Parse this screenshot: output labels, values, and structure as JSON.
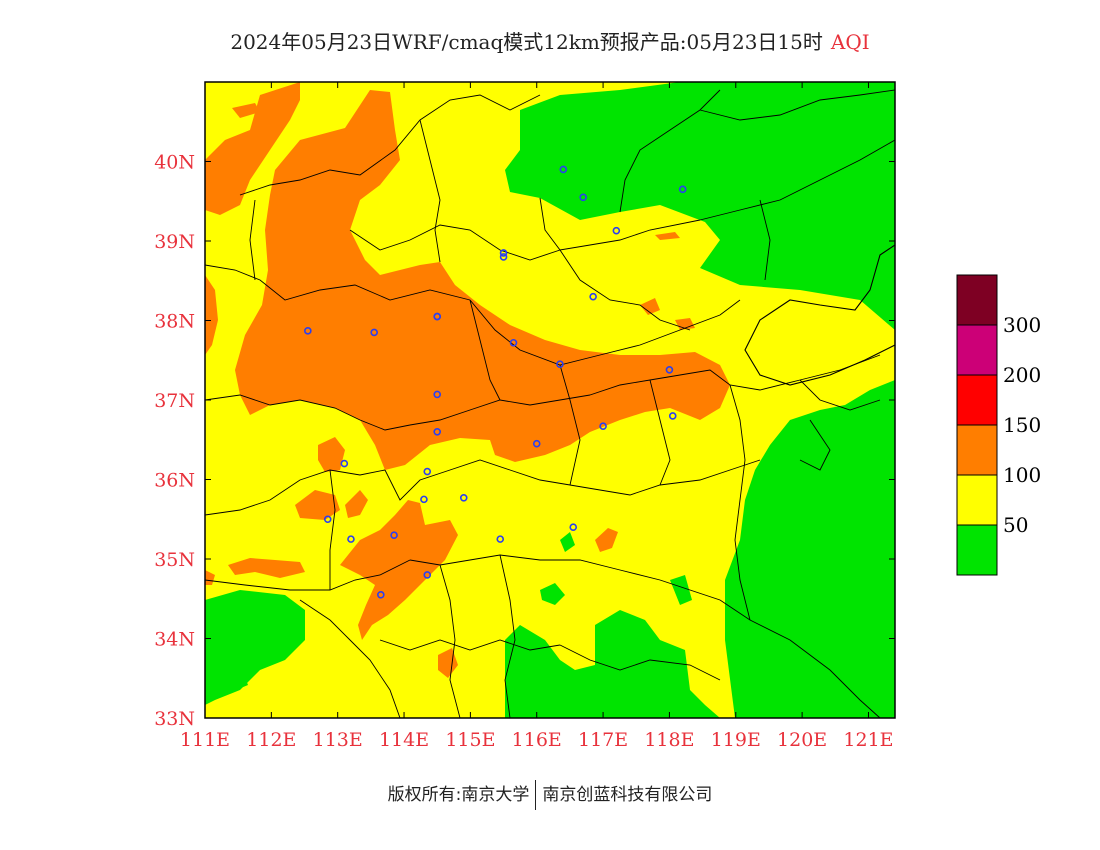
{
  "title": {
    "text": "2024年05月23日WRF/cmaq模式12km预报产品:05月23日15时",
    "tag": "AQI"
  },
  "axes": {
    "x_ticks": [
      "111E",
      "112E",
      "113E",
      "114E",
      "115E",
      "116E",
      "117E",
      "118E",
      "119E",
      "120E",
      "121E"
    ],
    "y_ticks": [
      "33N",
      "34N",
      "35N",
      "36N",
      "37N",
      "38N",
      "39N",
      "40N"
    ],
    "tick_color": "#e8323c",
    "lon_range": [
      111,
      121.4
    ],
    "lat_range": [
      33,
      41
    ]
  },
  "legend": {
    "labels": [
      "50",
      "100",
      "150",
      "200",
      "300"
    ],
    "colors": [
      "#00e400",
      "#ffff00",
      "#ff7e00",
      "#ff0000",
      "#cc0077",
      "#7e0023"
    ]
  },
  "copyright": {
    "left": "版权所有:南京大学",
    "right": "南京创蓝科技有限公司"
  },
  "stations": [
    [
      116.4,
      39.9
    ],
    [
      116.7,
      39.55
    ],
    [
      117.2,
      39.13
    ],
    [
      118.2,
      39.65
    ],
    [
      115.5,
      38.85
    ],
    [
      114.5,
      38.05
    ],
    [
      115.5,
      38.8
    ],
    [
      116.85,
      38.3
    ],
    [
      112.55,
      37.87
    ],
    [
      113.55,
      37.85
    ],
    [
      114.5,
      38.05
    ],
    [
      115.65,
      37.72
    ],
    [
      116.35,
      37.45
    ],
    [
      118.0,
      37.38
    ],
    [
      114.5,
      37.07
    ],
    [
      114.5,
      36.6
    ],
    [
      116.0,
      36.45
    ],
    [
      117.0,
      36.67
    ],
    [
      118.05,
      36.8
    ],
    [
      113.1,
      36.2
    ],
    [
      114.35,
      36.1
    ],
    [
      114.3,
      35.75
    ],
    [
      114.9,
      35.77
    ],
    [
      112.85,
      35.5
    ],
    [
      113.2,
      35.25
    ],
    [
      113.85,
      35.3
    ],
    [
      115.45,
      35.25
    ],
    [
      116.55,
      35.4
    ],
    [
      114.35,
      34.8
    ],
    [
      113.65,
      34.55
    ]
  ]
}
